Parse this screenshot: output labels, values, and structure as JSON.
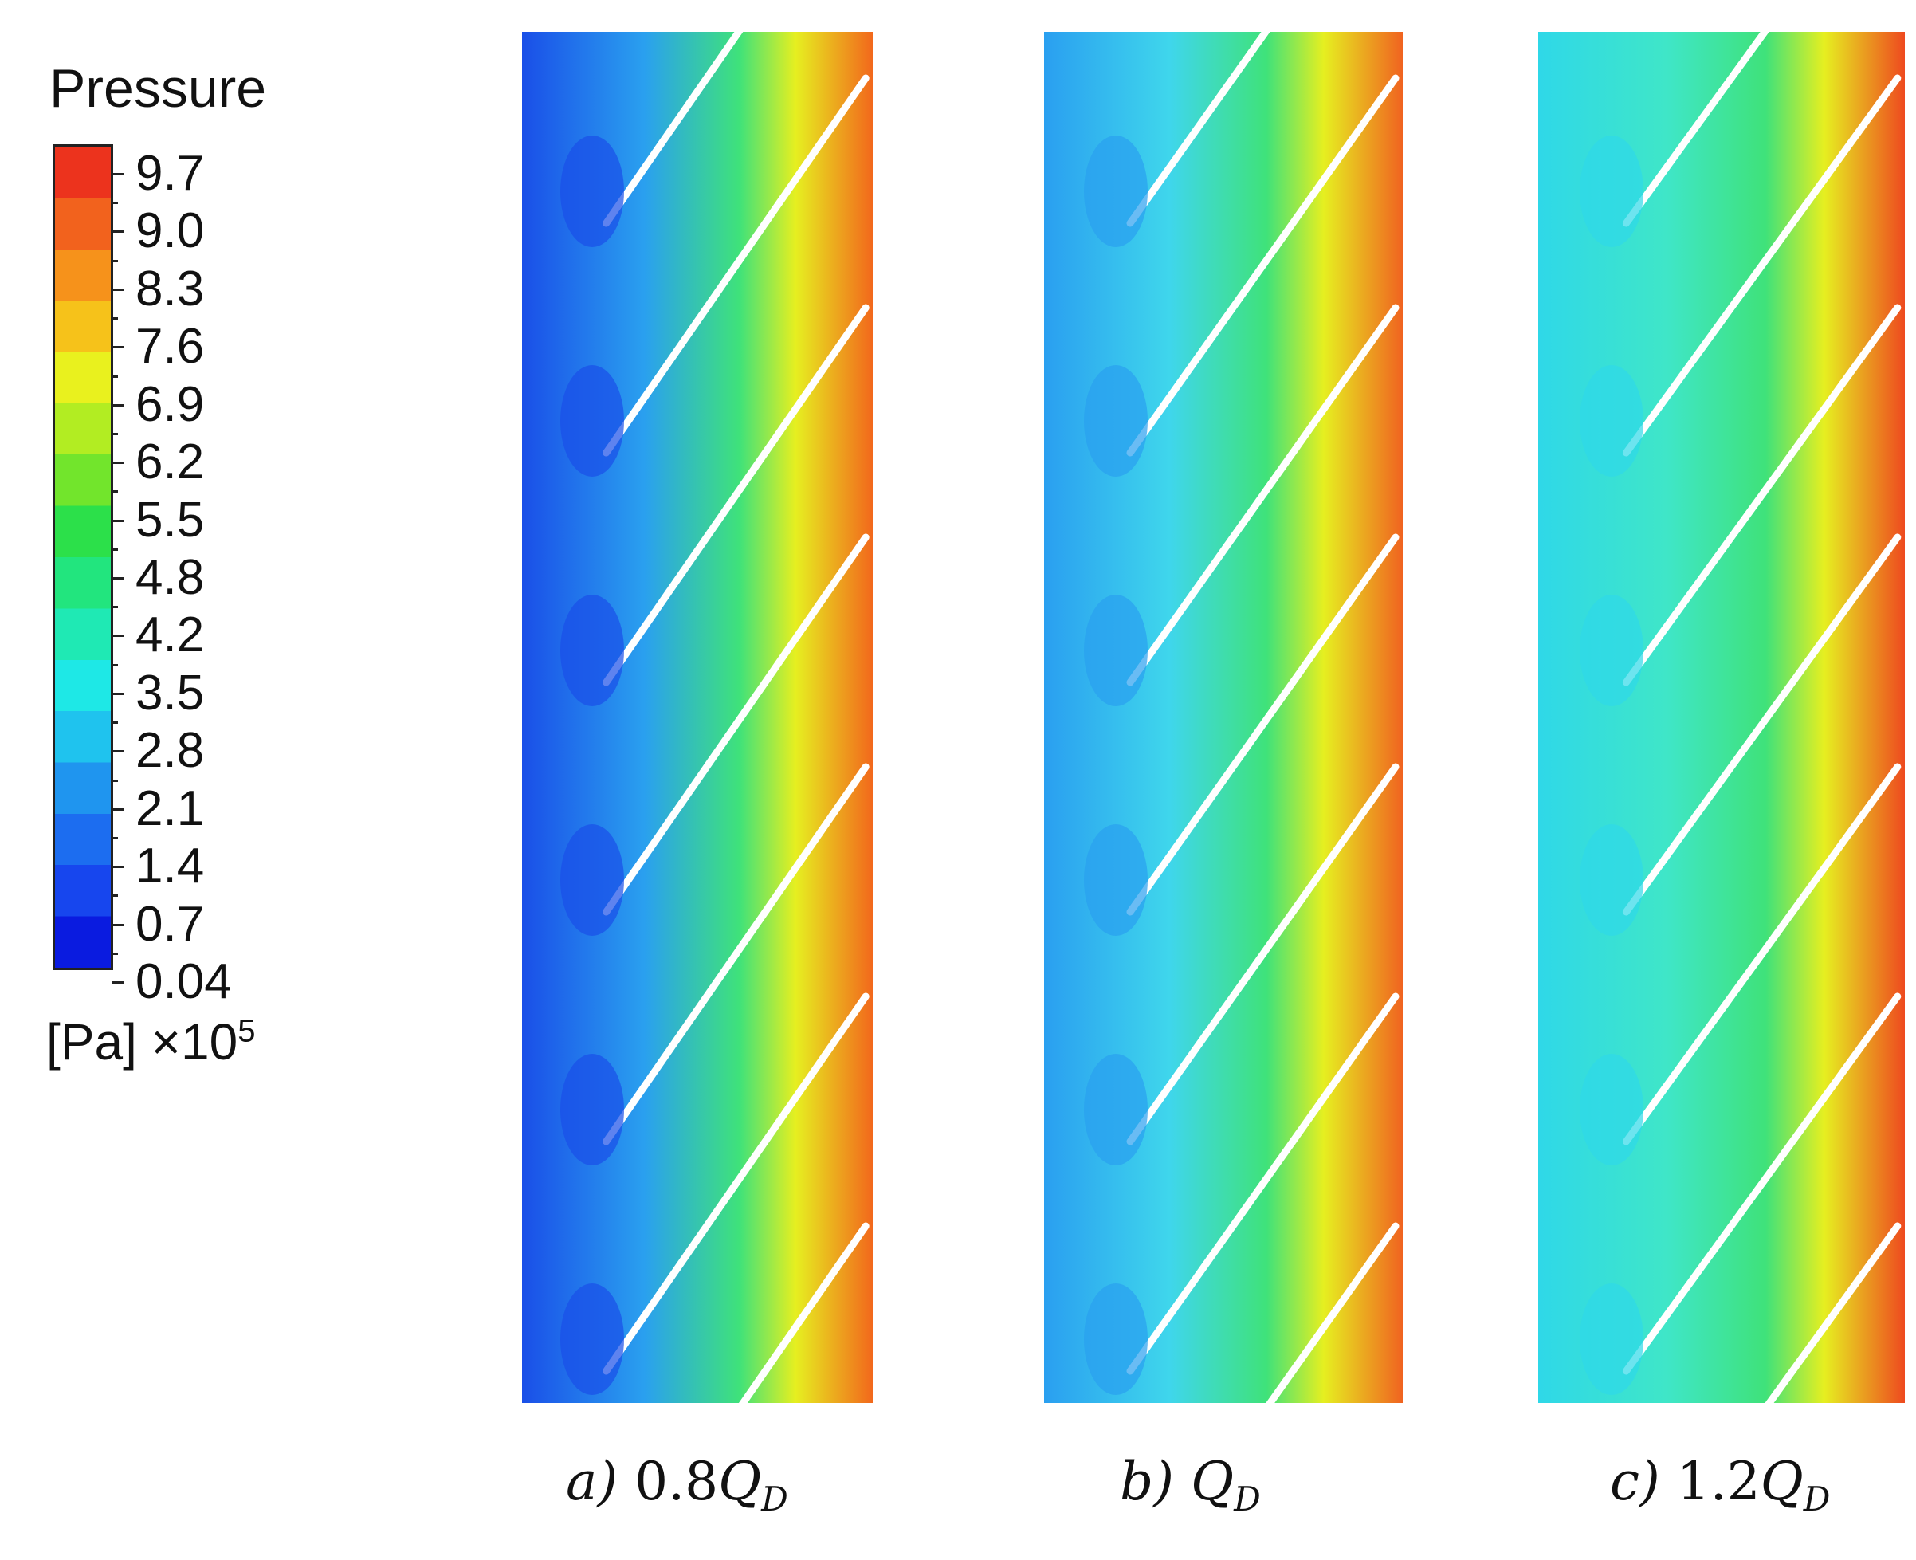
{
  "legend": {
    "title": "Pressure",
    "ticks": [
      "9.7",
      "9.0",
      "8.3",
      "7.6",
      "6.9",
      "6.2",
      "5.5",
      "4.8",
      "4.2",
      "3.5",
      "2.8",
      "2.1",
      "1.4",
      "0.7",
      "0.04"
    ],
    "units_text": "[Pa] ×10",
    "units_exp": "5",
    "colors": [
      "#0a1be0",
      "#1746ee",
      "#1c6df0",
      "#1f95ef",
      "#1fc3ee",
      "#1ee8e6",
      "#1fe9b4",
      "#22e57e",
      "#2ce04a",
      "#72e52c",
      "#b2ed22",
      "#e9f11e",
      "#f6c21a",
      "#f6921b",
      "#f2621d",
      "#ec331d"
    ]
  },
  "panels": [
    {
      "label": "a)",
      "value": "0.8",
      "symbol": "Q",
      "sub": "D",
      "low": "#1a4fe8",
      "mid": "#2aa0ef",
      "high": "#f2681c"
    },
    {
      "label": "b)",
      "value": "",
      "symbol": "Q",
      "sub": "D",
      "low": "#2a9ff0",
      "mid": "#3fd6ec",
      "high": "#f06320"
    },
    {
      "label": "c)",
      "value": "1.2",
      "symbol": "Q",
      "sub": "D",
      "low": "#2fd8e8",
      "mid": "#3fe6c8",
      "high": "#ee4a1f"
    }
  ]
}
